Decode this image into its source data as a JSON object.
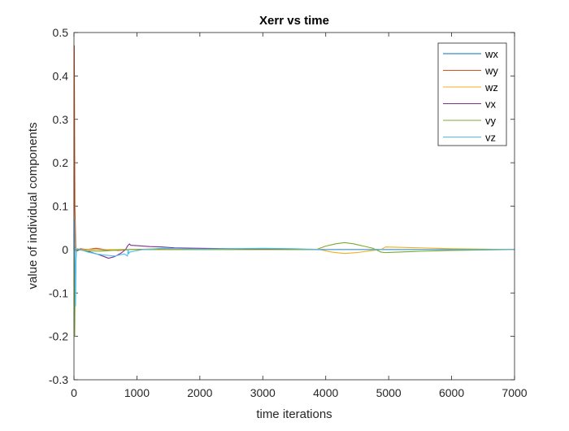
{
  "chart_data": {
    "type": "line",
    "title": "Xerr vs time",
    "xlabel": "time iterations",
    "ylabel": "value of individual components",
    "xlim": [
      0,
      7000
    ],
    "ylim": [
      -0.3,
      0.5
    ],
    "xticks": [
      0,
      1000,
      2000,
      3000,
      4000,
      5000,
      6000,
      7000
    ],
    "yticks": [
      -0.3,
      -0.2,
      -0.1,
      0,
      0.1,
      0.2,
      0.3,
      0.4,
      0.5
    ],
    "xtick_labels": [
      "0",
      "1000",
      "2000",
      "3000",
      "4000",
      "5000",
      "6000",
      "7000"
    ],
    "ytick_labels": [
      "-0.3",
      "-0.2",
      "-0.1",
      "0",
      "0.1",
      "0.2",
      "0.3",
      "0.4",
      "0.5"
    ],
    "grid": false,
    "legend_position": "top-right",
    "series": [
      {
        "name": "wx",
        "color": "#0072BD",
        "x": [
          0,
          10,
          30,
          100,
          300,
          600,
          900,
          1400,
          2000,
          3000,
          4000,
          5000,
          6000,
          7000
        ],
        "y": [
          0.0,
          0.01,
          -0.004,
          0.001,
          0.0,
          -0.001,
          0.0,
          0.0,
          0.0,
          0.0,
          0.0,
          0.0,
          0.0,
          0.0
        ]
      },
      {
        "name": "wy",
        "color": "#D95319",
        "x": [
          0,
          5,
          15,
          30,
          60,
          100,
          200,
          350,
          500,
          700,
          900,
          1200,
          1500,
          2000,
          3000,
          4000,
          5000,
          6000,
          7000
        ],
        "y": [
          0.0,
          0.47,
          0.1,
          0.0,
          -0.003,
          0.002,
          0.0,
          0.003,
          0.0,
          -0.002,
          0.0,
          0.001,
          0.0,
          0.0,
          0.0,
          0.0,
          0.0,
          0.0,
          0.0
        ]
      },
      {
        "name": "wz",
        "color": "#EDB120",
        "x": [
          0,
          10,
          30,
          100,
          500,
          1000,
          2000,
          3000,
          3900,
          4100,
          4300,
          4500,
          4700,
          4880,
          4950,
          5500,
          6000,
          6500,
          7000
        ],
        "y": [
          0.0,
          0.0,
          0.002,
          0.0,
          0.0,
          0.0,
          0.0,
          0.0,
          0.0,
          -0.006,
          -0.009,
          -0.007,
          -0.003,
          0.0,
          0.006,
          0.004,
          0.002,
          0.001,
          0.0
        ]
      },
      {
        "name": "vx",
        "color": "#7E2F8E",
        "x": [
          0,
          50,
          200,
          400,
          550,
          650,
          750,
          820,
          850,
          880,
          900,
          1000,
          1200,
          1400,
          1600,
          2000,
          2500,
          3000,
          4000,
          5000,
          6000,
          7000
        ],
        "y": [
          0.0,
          0.0,
          -0.003,
          -0.012,
          -0.02,
          -0.016,
          -0.008,
          0.0,
          0.008,
          0.013,
          0.01,
          0.009,
          0.007,
          0.006,
          0.004,
          0.003,
          0.002,
          0.001,
          0.0,
          0.0,
          0.0,
          0.0
        ]
      },
      {
        "name": "vy",
        "color": "#77AC30",
        "x": [
          0,
          5,
          12,
          20,
          40,
          80,
          200,
          400,
          600,
          800,
          1000,
          1500,
          2000,
          3000,
          3850,
          4000,
          4150,
          4300,
          4450,
          4600,
          4750,
          4880,
          4950,
          5500,
          6000,
          6500,
          7000
        ],
        "y": [
          0.0,
          0.0,
          -0.2,
          -0.05,
          0.0,
          0.0,
          -0.003,
          -0.004,
          -0.002,
          0.0,
          0.0,
          0.0,
          0.0,
          0.0,
          0.0,
          0.008,
          0.013,
          0.016,
          0.013,
          0.008,
          0.003,
          -0.006,
          -0.007,
          -0.004,
          -0.002,
          -0.001,
          0.0
        ]
      },
      {
        "name": "vz",
        "color": "#4DBEEE",
        "x": [
          0,
          10,
          18,
          25,
          35,
          60,
          100,
          200,
          350,
          500,
          650,
          800,
          850,
          860,
          870,
          880,
          950,
          1100,
          1400,
          1700,
          2000,
          2500,
          3000,
          3500,
          4000,
          5000,
          6000,
          7000
        ],
        "y": [
          0.0,
          0.07,
          -0.05,
          -0.13,
          0.0,
          0.002,
          0.0,
          -0.005,
          -0.01,
          -0.013,
          -0.015,
          -0.01,
          -0.015,
          0.0,
          -0.01,
          -0.006,
          -0.004,
          0.0,
          0.003,
          0.002,
          0.001,
          0.002,
          0.003,
          0.002,
          0.0,
          0.0,
          0.0,
          0.0
        ]
      }
    ]
  }
}
